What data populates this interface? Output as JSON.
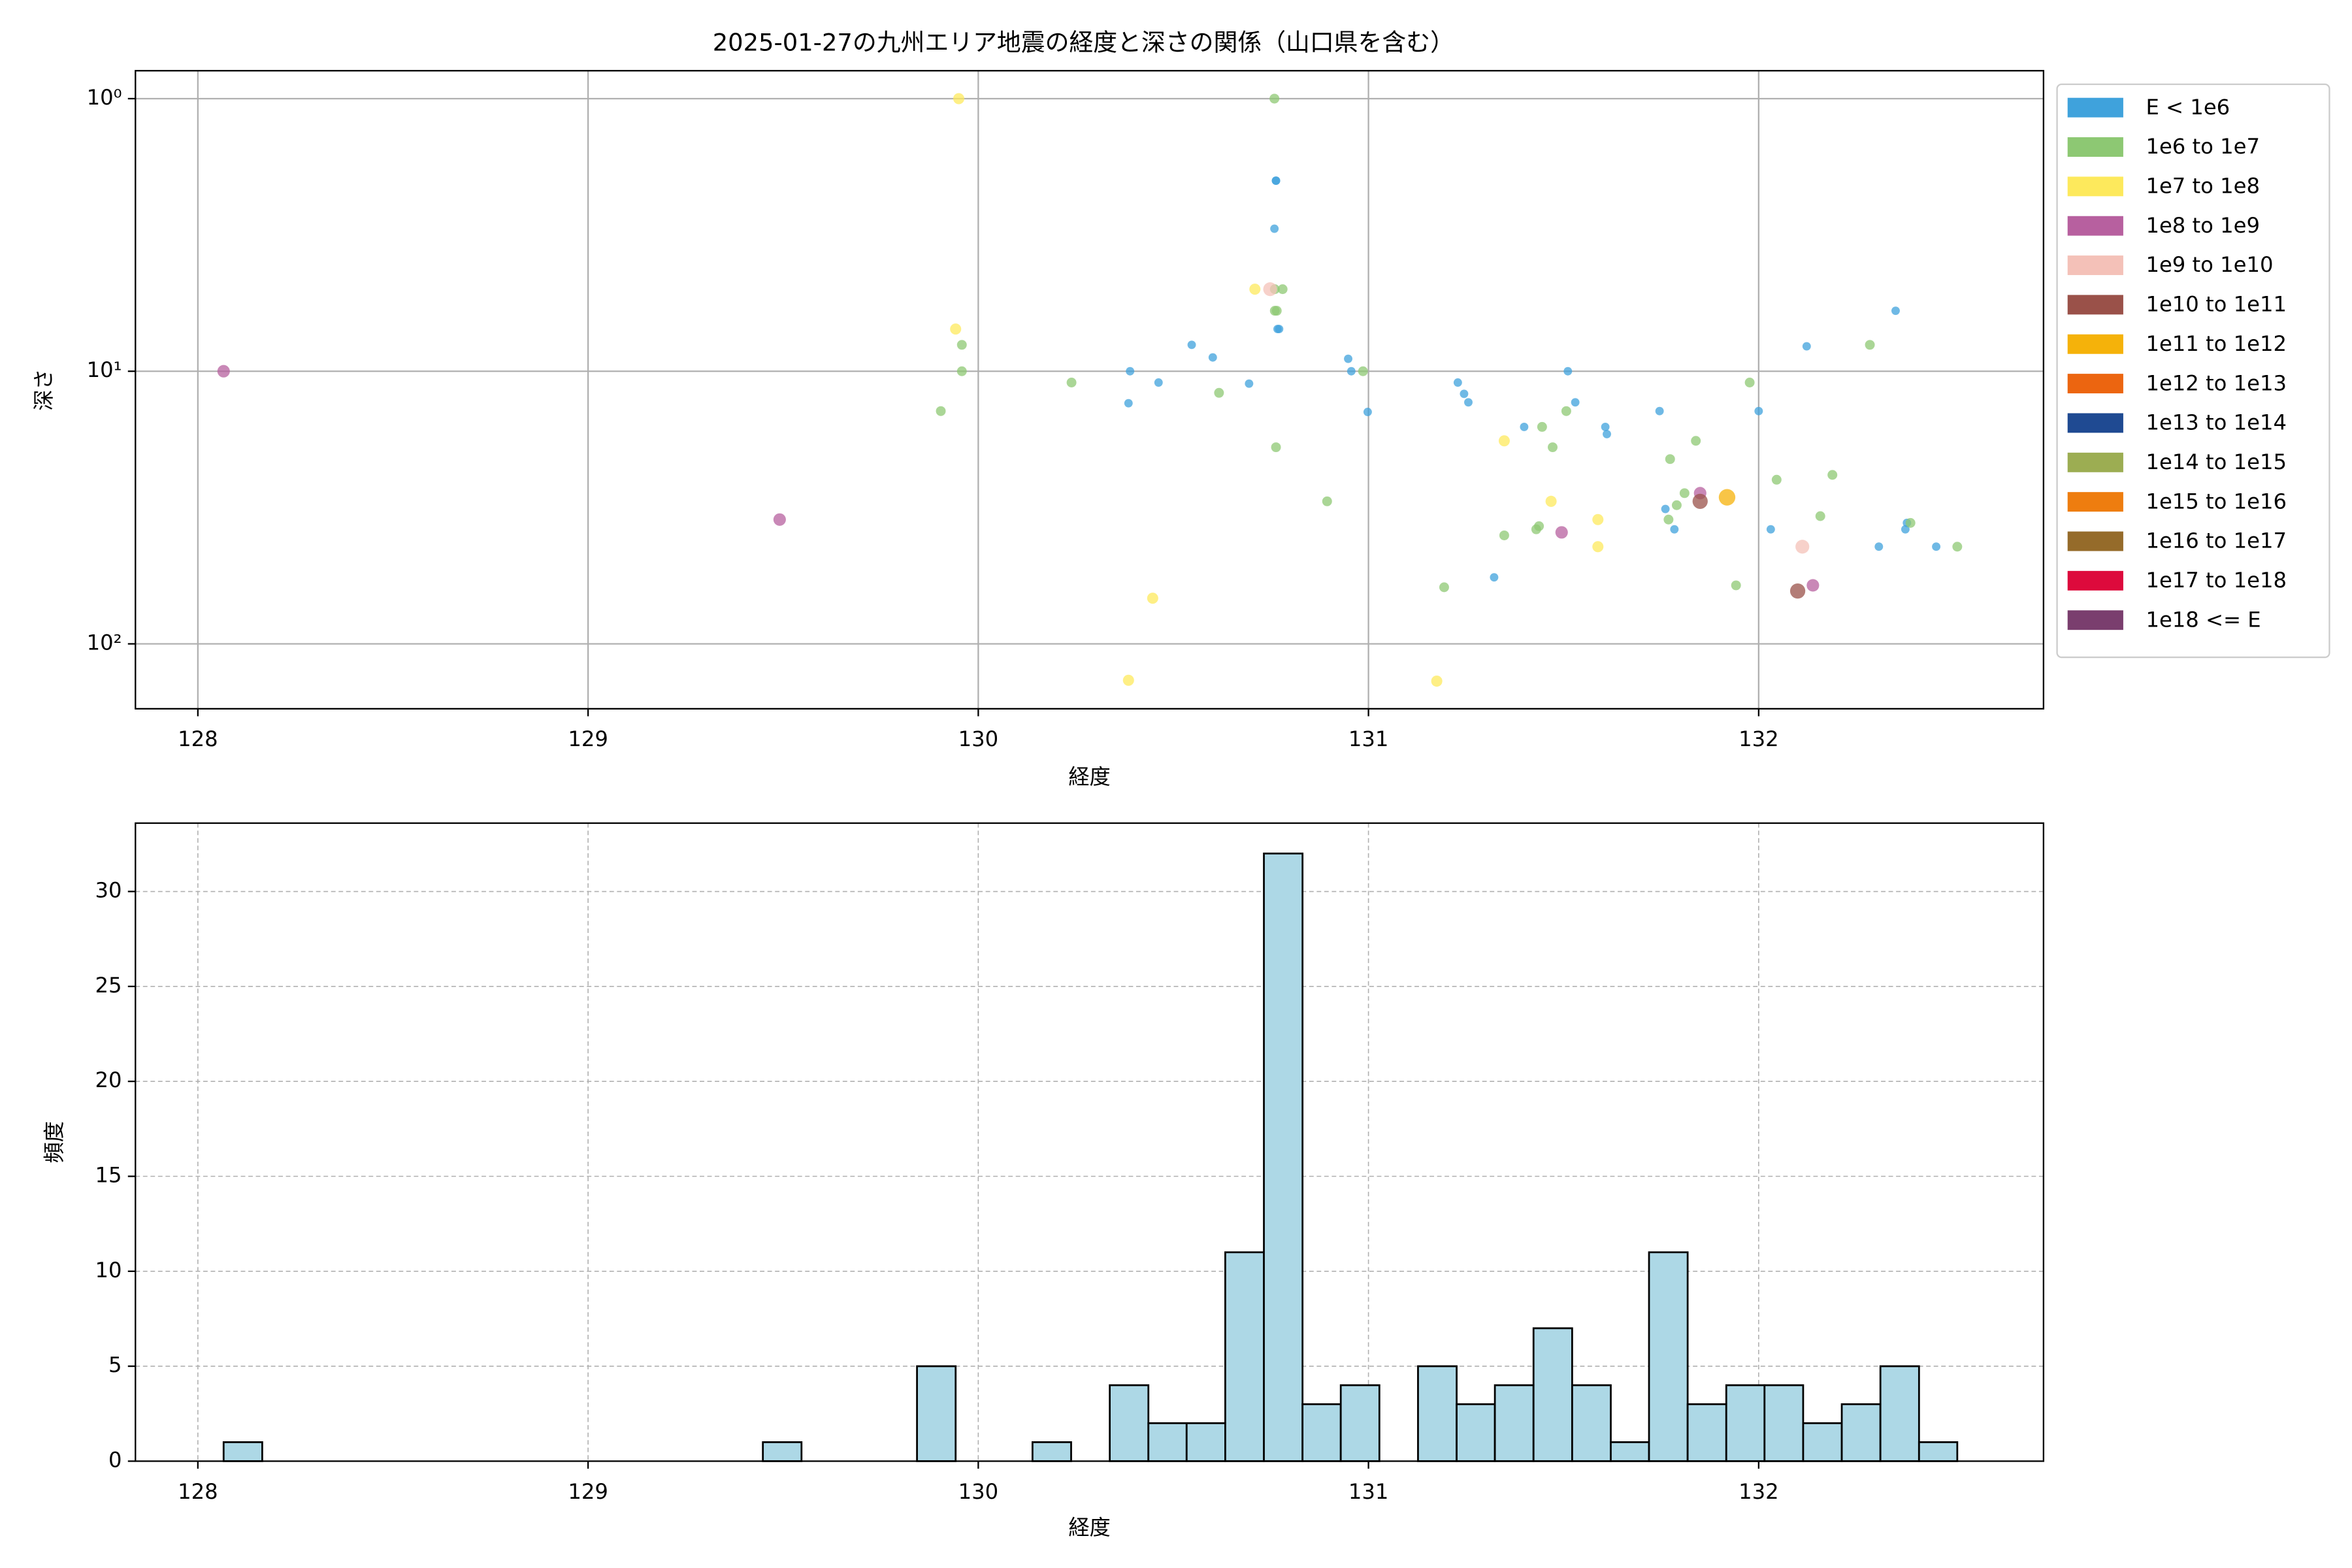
{
  "chart_data": [
    {
      "type": "scatter",
      "title": "2025-01-27の九州エリア地震の経度と深さの関係（山口県を含む）",
      "xlabel": "経度",
      "ylabel": "深さ",
      "xlim": [
        127.84,
        132.73
      ],
      "xticks": [
        128,
        129,
        130,
        131,
        132
      ],
      "ylim": [
        173,
        0.79
      ],
      "log_y": true,
      "yticks": [
        {
          "value": 1,
          "label": "10⁰"
        },
        {
          "value": 10,
          "label": "10¹"
        },
        {
          "value": 100,
          "label": "10²"
        }
      ],
      "grid": true,
      "legend": "outside-upper-right",
      "series": [
        {
          "name": "E < 1e6",
          "color": "#3fa2dc",
          "x": [
            130.763,
            130.763,
            130.759,
            130.767,
            130.771,
            130.547,
            130.601,
            130.389,
            130.694,
            130.462,
            130.385,
            130.948,
            130.956,
            130.998,
            131.229,
            131.245,
            131.256,
            131.511,
            131.53,
            131.399,
            131.607,
            131.611,
            131.746,
            131.761,
            131.784,
            132.0,
            132.031,
            131.322,
            132.123,
            132.351,
            132.38,
            132.376,
            132.308,
            132.455
          ],
          "values": [
            2,
            2,
            3,
            7,
            7,
            8,
            8.9,
            10,
            11.1,
            11,
            13.1,
            9,
            10,
            14.1,
            11,
            12.1,
            13,
            10,
            13,
            16,
            16,
            17,
            14,
            32,
            38,
            14,
            38,
            57,
            8.1,
            6,
            36,
            38,
            44,
            44
          ]
        },
        {
          "name": "1e6 to 1e7",
          "color": "#8dc873",
          "x": [
            130.759,
            130.76,
            130.78,
            130.76,
            130.765,
            129.958,
            129.958,
            129.904,
            130.239,
            130.617,
            130.763,
            130.894,
            130.986,
            131.194,
            131.348,
            131.43,
            131.437,
            131.445,
            131.472,
            131.507,
            131.773,
            131.839,
            131.81,
            131.79,
            131.769,
            131.977,
            132.046,
            132.189,
            132.158,
            131.942,
            132.285,
            132.389,
            132.509
          ],
          "values": [
            1,
            5,
            5,
            6,
            6,
            8,
            10,
            14,
            11,
            12,
            19,
            30,
            10,
            62,
            40,
            38,
            37,
            16,
            19,
            14,
            21,
            18,
            28,
            31,
            35,
            11,
            25,
            24,
            34,
            61,
            8,
            36,
            44
          ]
        },
        {
          "name": "1e7 to 1e8",
          "color": "#fde95c",
          "x": [
            129.95,
            129.942,
            130.709,
            130.385,
            130.447,
            131.175,
            131.348,
            131.468,
            131.588,
            131.588
          ],
          "values": [
            1,
            7,
            5,
            136,
            68,
            137,
            18,
            30,
            35,
            44
          ]
        },
        {
          "name": "1e8 to 1e9",
          "color": "#b7609f",
          "x": [
            128.066,
            129.491,
            131.495,
            131.85,
            132.139
          ],
          "values": [
            10,
            35,
            39,
            28,
            61
          ]
        },
        {
          "name": "1e9 to 1e10",
          "color": "#f4c1b8",
          "x": [
            130.748,
            132.112
          ],
          "values": [
            5,
            44
          ]
        },
        {
          "name": "1e10 to 1e11",
          "color": "#9a5149",
          "x": [
            131.85,
            132.1
          ],
          "values": [
            30,
            64
          ]
        },
        {
          "name": "1e11 to 1e12",
          "color": "#f5b20a",
          "x": [
            131.919
          ],
          "values": [
            29
          ]
        },
        {
          "name": "1e12 to 1e13",
          "color": "#ec6510",
          "x": [],
          "values": []
        },
        {
          "name": "1e13 to 1e14",
          "color": "#1f4a92",
          "x": [],
          "values": []
        },
        {
          "name": "1e14 to 1e15",
          "color": "#9cad52",
          "x": [],
          "values": []
        },
        {
          "name": "1e15 to 1e16",
          "color": "#ee7d0f",
          "x": [],
          "values": []
        },
        {
          "name": "1e16 to 1e17",
          "color": "#956b2a",
          "x": [],
          "values": []
        },
        {
          "name": "1e17 to 1e18",
          "color": "#dd0a3c",
          "x": [],
          "values": []
        },
        {
          "name": "1e18 <= E",
          "color": "#7a3e6e",
          "x": [],
          "values": []
        }
      ]
    },
    {
      "type": "histogram",
      "xlabel": "経度",
      "ylabel": "頻度",
      "xlim": [
        127.84,
        132.73
      ],
      "xticks": [
        128,
        129,
        130,
        131,
        132
      ],
      "ylim": [
        0,
        33.6
      ],
      "yticks": [
        0,
        5,
        10,
        15,
        20,
        25,
        30
      ],
      "grid": true,
      "color": "#add8e6",
      "edgecolor": "#000000",
      "bins": [
        128.066,
        128.165,
        128.263,
        128.362,
        128.461,
        128.56,
        128.658,
        128.757,
        128.856,
        128.955,
        129.053,
        129.152,
        129.251,
        129.35,
        129.448,
        129.547,
        129.646,
        129.745,
        129.843,
        129.942,
        130.041,
        130.139,
        130.238,
        130.337,
        130.436,
        130.534,
        130.633,
        130.732,
        130.831,
        130.929,
        131.028,
        131.127,
        131.226,
        131.324,
        131.423,
        131.522,
        131.621,
        131.719,
        131.818,
        131.917,
        132.015,
        132.114,
        132.213,
        132.312,
        132.411,
        132.509
      ],
      "counts": [
        1,
        0,
        0,
        0,
        0,
        0,
        0,
        0,
        0,
        0,
        0,
        0,
        0,
        0,
        1,
        0,
        0,
        0,
        5,
        0,
        0,
        1,
        0,
        4,
        2,
        2,
        11,
        32,
        3,
        4,
        0,
        5,
        3,
        4,
        7,
        4,
        1,
        11,
        3,
        4,
        4,
        2,
        3,
        5,
        1
      ]
    }
  ]
}
